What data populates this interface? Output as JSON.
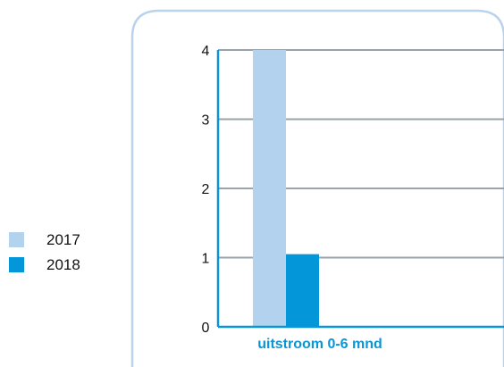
{
  "colors": {
    "frame": "#b9d3ec",
    "gridline": "#9aa3aa",
    "axis": "#0a96d6",
    "category_label": "#0a96d6"
  },
  "chart_data": {
    "type": "bar",
    "categories": [
      "uitstroom 0-6 mnd"
    ],
    "series": [
      {
        "name": "2017",
        "values": [
          4
        ],
        "color": "#b3d2ee"
      },
      {
        "name": "2018",
        "values": [
          1.05
        ],
        "color": "#0396d8"
      }
    ],
    "yticks": [
      "0",
      "1",
      "2",
      "3",
      "4"
    ],
    "ylim": [
      0,
      4
    ],
    "grid": true,
    "legend_position": "left"
  }
}
